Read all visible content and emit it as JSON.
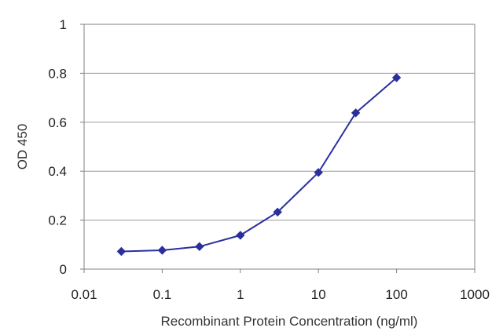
{
  "chart_data": {
    "type": "line",
    "title": "",
    "xlabel": "Recombinant Protein Concentration (ng/ml)",
    "ylabel": "OD 450",
    "x_scale": "log",
    "xlim": [
      0.01,
      1000
    ],
    "ylim": [
      0,
      1
    ],
    "x_ticks": [
      0.01,
      0.1,
      1,
      10,
      100,
      1000
    ],
    "x_tick_labels": [
      "0.01",
      "0.1",
      "1",
      "10",
      "100",
      "1000"
    ],
    "y_ticks": [
      0,
      0.2,
      0.4,
      0.6,
      0.8,
      1
    ],
    "y_tick_labels": [
      "0",
      "0.2",
      "0.4",
      "0.6",
      "0.8",
      "1"
    ],
    "grid": "horizontal",
    "legend": "none",
    "series": [
      {
        "color": "#2b2f9e",
        "marker": "diamond",
        "x": [
          0.03,
          0.1,
          0.3,
          1,
          3,
          10,
          30,
          100
        ],
        "y": [
          0.072,
          0.077,
          0.092,
          0.138,
          0.233,
          0.395,
          0.638,
          0.782
        ]
      }
    ]
  }
}
